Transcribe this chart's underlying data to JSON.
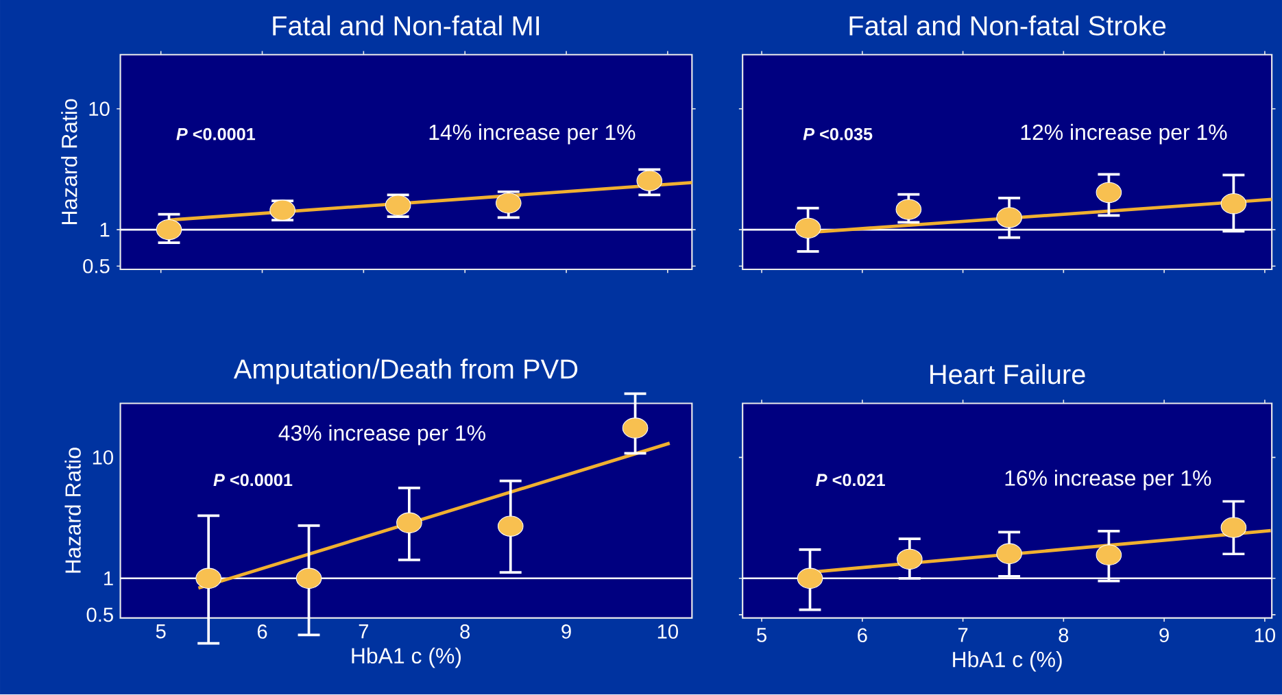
{
  "chart_data": [
    {
      "type": "scatter",
      "title": "Fatal and Non-fatal MI",
      "ylabel": "Hazard Ratio",
      "log": true,
      "tick_labels": "y",
      "xlim": [
        4.6,
        10.24
      ],
      "ylim": [
        0.47,
        28
      ],
      "xticks": [
        5,
        6,
        7,
        8,
        9,
        10
      ],
      "yticks": [
        0.5,
        1,
        10
      ],
      "series": [
        {
          "type": "scatter",
          "marker": "circle",
          "color": "#f8c050",
          "x": [
            5.08,
            6.2,
            7.34,
            8.43,
            9.82
          ],
          "values": [
            1.0,
            1.45,
            1.59,
            1.66,
            2.54
          ],
          "errors": [
            [
              0.78,
              1.34
            ],
            [
              1.2,
              1.73
            ],
            [
              1.28,
              1.94
            ],
            [
              1.26,
              2.06
            ],
            [
              1.94,
              3.14
            ]
          ]
        },
        {
          "type": "line",
          "color": "#f0b030",
          "x": [
            5.07,
            10.24
          ],
          "values": [
            1.2,
            2.45
          ]
        }
      ],
      "ref_lines": [
        {
          "axis": "y",
          "value": 1,
          "color": "#ffffff"
        }
      ],
      "annotations": [
        "*P* <0.0001",
        "14% increase per 1%"
      ]
    },
    {
      "type": "scatter",
      "title": "Fatal and Non-fatal Stroke",
      "log": true,
      "tick_labels": false,
      "xlim": [
        4.81,
        10.07
      ],
      "ylim": [
        0.47,
        28
      ],
      "xticks": [
        5,
        6,
        7,
        8,
        9,
        10
      ],
      "yticks": [
        0.5,
        1,
        10
      ],
      "series": [
        {
          "type": "scatter",
          "marker": "circle",
          "color": "#f8c050",
          "x": [
            5.46,
            6.46,
            7.46,
            8.45,
            9.69
          ],
          "values": [
            1.03,
            1.47,
            1.26,
            2.03,
            1.64
          ],
          "errors": [
            [
              0.66,
              1.51
            ],
            [
              1.15,
              1.96
            ],
            [
              0.86,
              1.83
            ],
            [
              1.31,
              2.87
            ],
            [
              0.97,
              2.83
            ]
          ]
        },
        {
          "type": "line",
          "color": "#f0b030",
          "x": [
            5.47,
            10.07
          ],
          "values": [
            0.95,
            1.78
          ]
        }
      ],
      "ref_lines": [
        {
          "axis": "y",
          "value": 1,
          "color": "#ffffff"
        }
      ],
      "annotations": [
        "*P* <0.035",
        "12% increase per 1%"
      ]
    },
    {
      "type": "scatter",
      "title": "Amputation/Death from PVD",
      "xlabel": "HbA1 c (%)",
      "ylabel": "Hazard Ratio",
      "log": true,
      "xlim": [
        4.6,
        10.24
      ],
      "ylim": [
        0.47,
        28
      ],
      "xticks": [
        5,
        6,
        7,
        8,
        9,
        10
      ],
      "yticks": [
        0.5,
        1,
        10
      ],
      "series": [
        {
          "type": "scatter",
          "marker": "circle",
          "color": "#f8c050",
          "x": [
            5.47,
            6.46,
            7.45,
            8.45,
            9.68
          ],
          "values": [
            1.0,
            1.0,
            2.88,
            2.7,
            17.5
          ],
          "errors": [
            [
              0.29,
              3.3
            ],
            [
              0.34,
              2.73
            ],
            [
              1.42,
              5.6
            ],
            [
              1.12,
              6.4
            ],
            [
              10.8,
              33.7
            ]
          ]
        },
        {
          "type": "line",
          "color": "#f0b030",
          "x": [
            5.37,
            10.02
          ],
          "values": [
            0.83,
            13.1
          ]
        }
      ],
      "ref_lines": [
        {
          "axis": "y",
          "value": 1,
          "color": "#ffffff"
        }
      ],
      "annotations": [
        "43% increase per 1%",
        "*P* <0.0001"
      ]
    },
    {
      "type": "scatter",
      "title": "Heart Failure",
      "xlabel": "HbA1 c (%)",
      "log": true,
      "tick_labels": "x",
      "xlim": [
        4.81,
        10.07
      ],
      "ylim": [
        0.47,
        28
      ],
      "xticks": [
        5,
        6,
        7,
        8,
        9,
        10
      ],
      "yticks": [
        0.5,
        1,
        10
      ],
      "series": [
        {
          "type": "scatter",
          "marker": "circle",
          "color": "#f8c050",
          "x": [
            5.48,
            6.47,
            7.46,
            8.45,
            9.69
          ],
          "values": [
            1.0,
            1.44,
            1.6,
            1.56,
            2.63
          ],
          "errors": [
            [
              0.55,
              1.73
            ],
            [
              1.0,
              2.12
            ],
            [
              1.04,
              2.41
            ],
            [
              0.95,
              2.46
            ],
            [
              1.59,
              4.33
            ]
          ]
        },
        {
          "type": "line",
          "color": "#f0b030",
          "x": [
            5.52,
            10.06
          ],
          "values": [
            1.13,
            2.48
          ]
        }
      ],
      "ref_lines": [
        {
          "axis": "y",
          "value": 1,
          "color": "#ffffff"
        }
      ],
      "annotations": [
        "*P* <0.021",
        "16% increase per 1%"
      ]
    }
  ]
}
